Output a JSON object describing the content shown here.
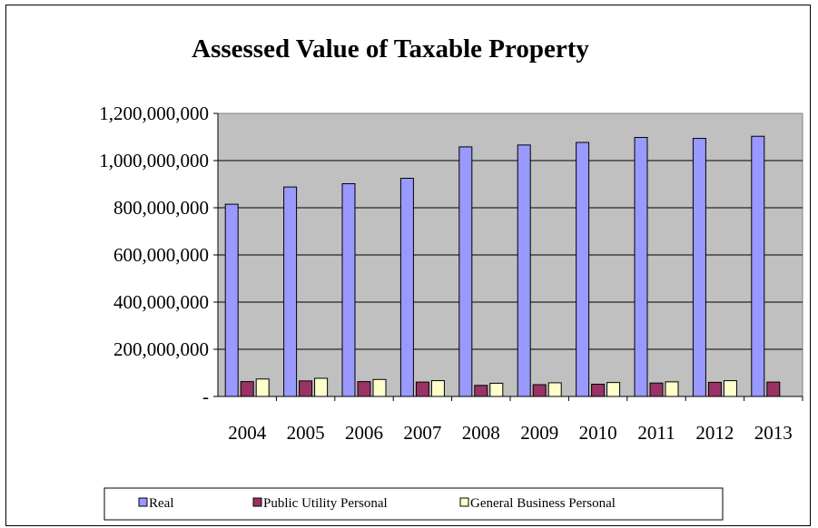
{
  "chart_data": {
    "type": "bar",
    "title": "Assessed Value of Taxable Property",
    "xlabel": "",
    "ylabel": "",
    "categories": [
      "2004",
      "2005",
      "2006",
      "2007",
      "2008",
      "2009",
      "2010",
      "2011",
      "2012",
      "2013"
    ],
    "series": [
      {
        "name": "Real",
        "color": "#9999ff",
        "values": [
          815000000,
          888000000,
          902000000,
          925000000,
          1058000000,
          1066000000,
          1077000000,
          1098000000,
          1094000000,
          1103000000
        ]
      },
      {
        "name": "Public Utility Personal",
        "color": "#993366",
        "values": [
          63000000,
          66000000,
          63000000,
          61000000,
          47000000,
          50000000,
          52000000,
          57000000,
          60000000,
          61000000
        ]
      },
      {
        "name": "General Business Personal",
        "color": "#ffffcc",
        "values": [
          74000000,
          77000000,
          72000000,
          67000000,
          56000000,
          58000000,
          59000000,
          62000000,
          67000000,
          null
        ]
      }
    ],
    "ylim": [
      0,
      1200000000
    ],
    "yticks": [
      {
        "value": 0,
        "label": "-"
      },
      {
        "value": 200000000,
        "label": "200,000,000"
      },
      {
        "value": 400000000,
        "label": "400,000,000"
      },
      {
        "value": 600000000,
        "label": "600,000,000"
      },
      {
        "value": 800000000,
        "label": "800,000,000"
      },
      {
        "value": 1000000000,
        "label": "1,000,000,000"
      },
      {
        "value": 1200000000,
        "label": "1,200,000,000"
      }
    ],
    "grid": true,
    "plot_background": "#c0c0c0",
    "legend_position": "bottom"
  }
}
